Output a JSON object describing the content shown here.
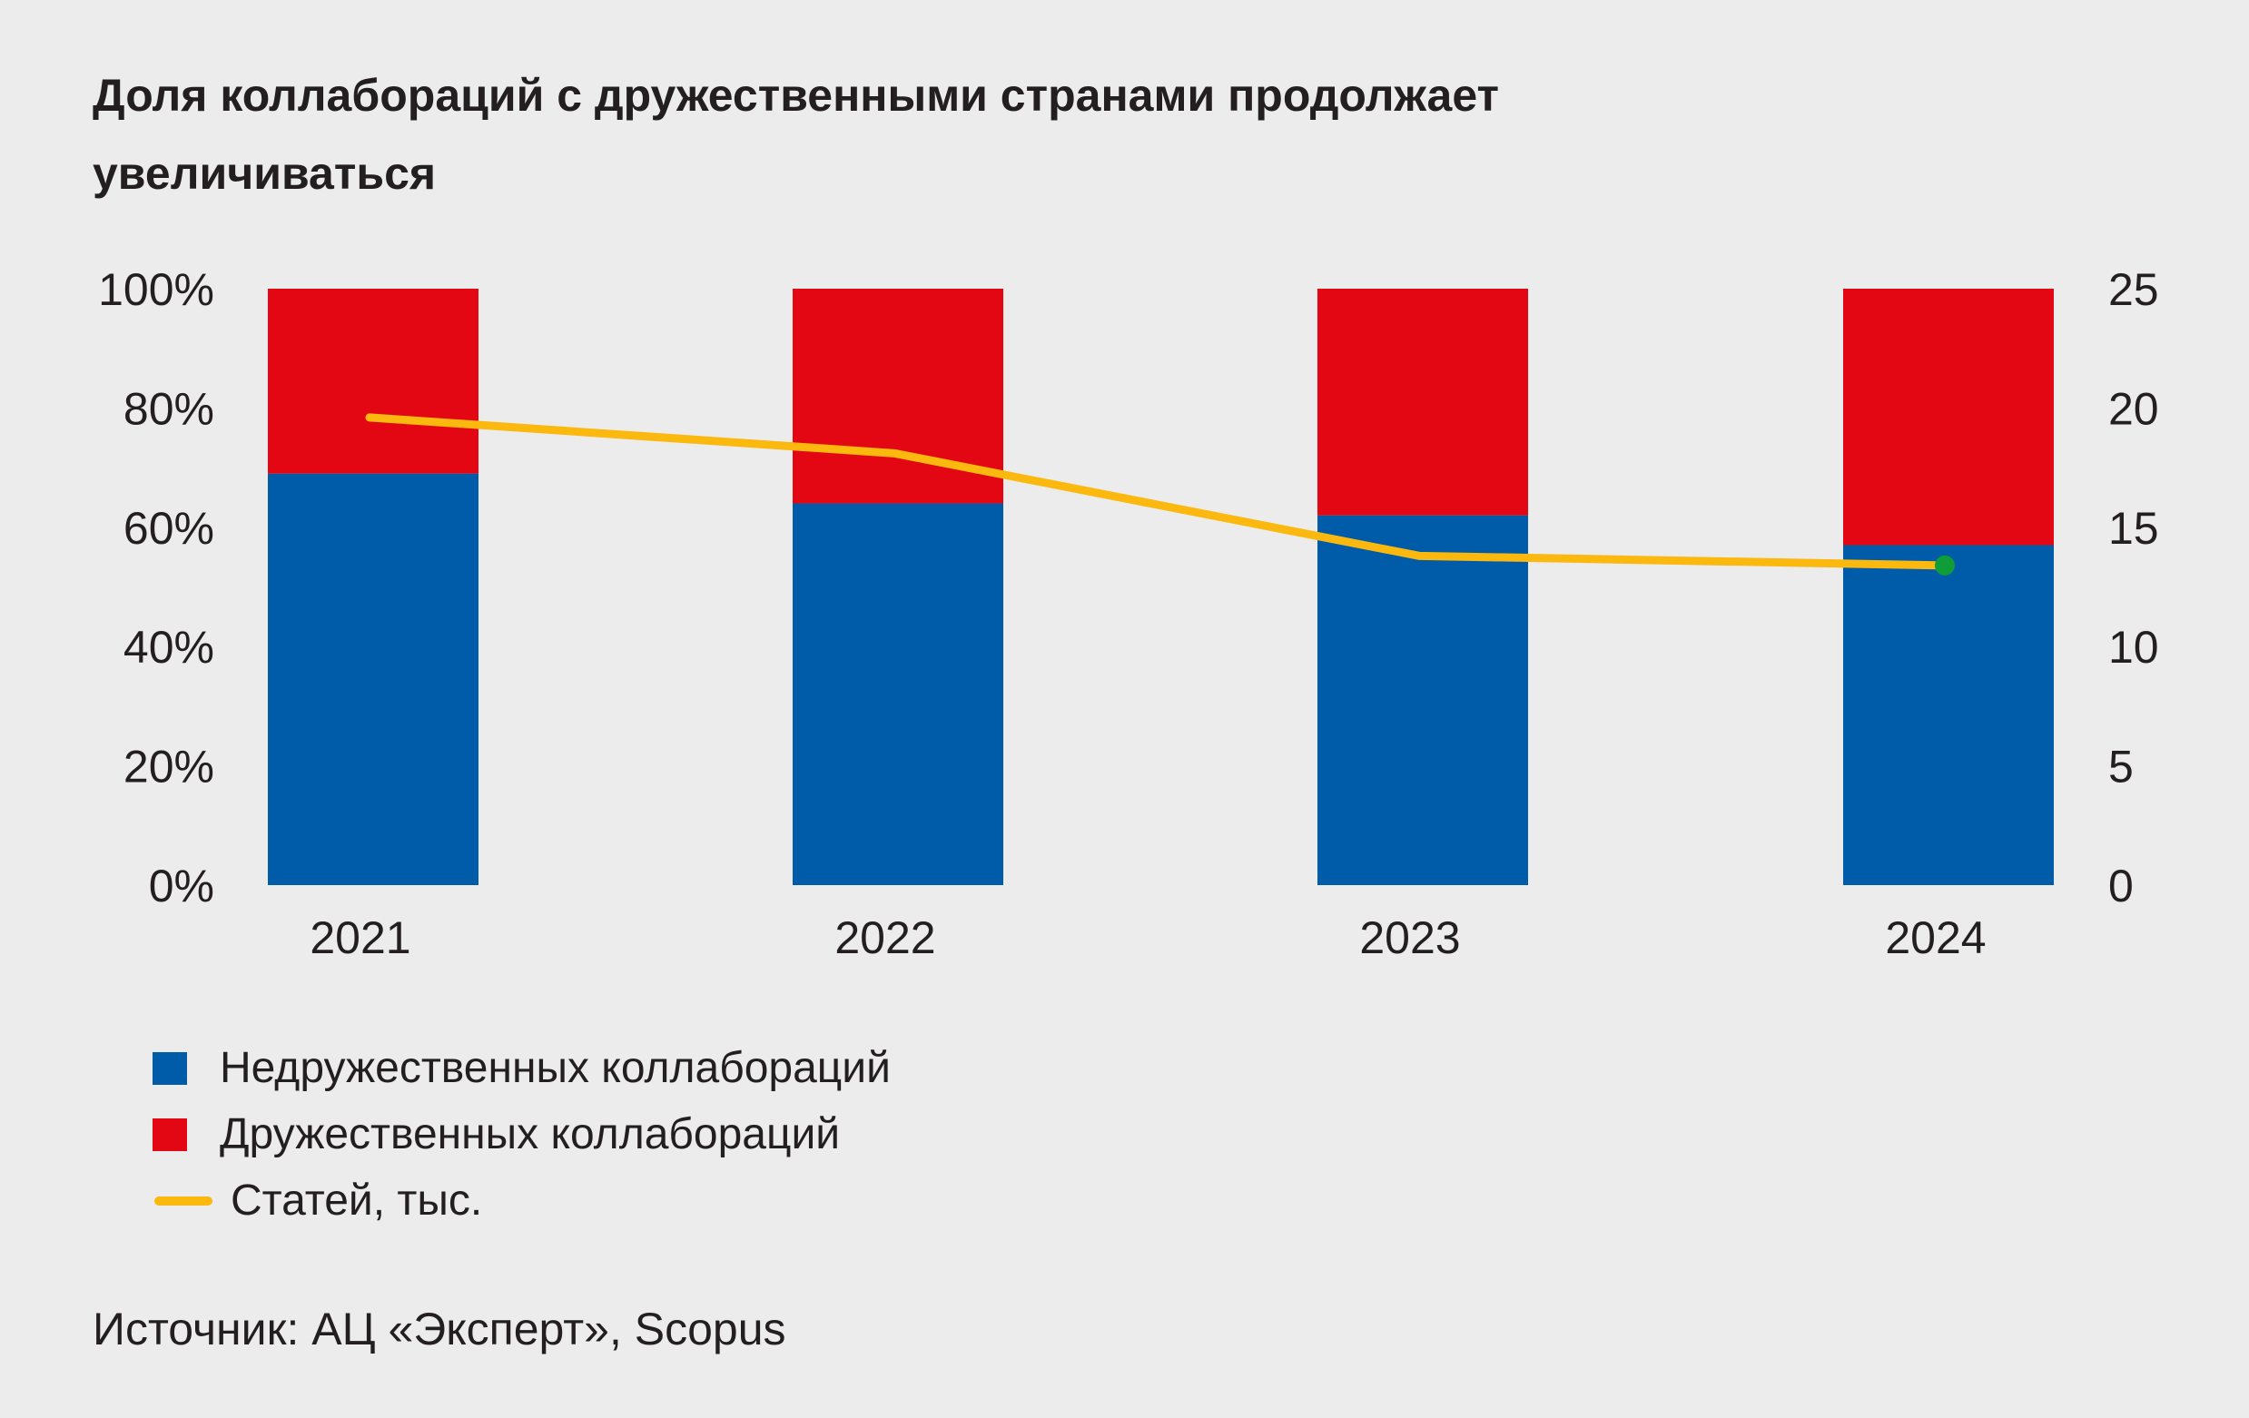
{
  "title": "Доля коллабораций с дружественными странами продолжает увеличиваться",
  "source": "Источник: АЦ «Эксперт», Scopus",
  "colors": {
    "background": "#ececec",
    "unfriendly": "#005ba8",
    "friendly": "#e30613",
    "line": "#fbb80f",
    "last_marker": "#0f9d3a"
  },
  "chart_data": {
    "type": "bar",
    "stacked": true,
    "categories": [
      "2021",
      "2022",
      "2023",
      "2024"
    ],
    "series": [
      {
        "name": "Недружественных коллабораций",
        "kind": "bar",
        "axis": "left",
        "color": "#005ba8",
        "values": [
          69,
          64,
          62,
          57
        ]
      },
      {
        "name": "Дружественных коллабораций",
        "kind": "bar",
        "axis": "left",
        "color": "#e30613",
        "values": [
          31,
          36,
          38,
          43
        ]
      },
      {
        "name": "Статей, тыс.",
        "kind": "line",
        "axis": "right",
        "color": "#fbb80f",
        "values": [
          19.6,
          18.1,
          13.8,
          13.4
        ]
      }
    ],
    "left_axis": {
      "ticks": [
        "0%",
        "20%",
        "40%",
        "60%",
        "80%",
        "100%"
      ],
      "ylim": [
        0,
        100
      ]
    },
    "right_axis": {
      "ticks": [
        "0",
        "5",
        "10",
        "15",
        "20",
        "25"
      ],
      "ylim": [
        0,
        25
      ]
    },
    "grid": false,
    "legend_position": "bottom-left"
  }
}
